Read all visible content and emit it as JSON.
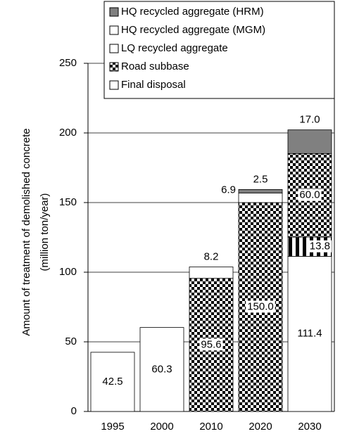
{
  "chart_data": {
    "type": "stacked_bar",
    "ylabel": [
      "Amount of treatment of demolished concrete",
      "(million ton/year)"
    ],
    "categories": [
      "1995",
      "2000",
      "2010",
      "2020",
      "2030"
    ],
    "ylim": [
      0,
      250
    ],
    "yticks": [
      0,
      50,
      100,
      150,
      200,
      250
    ],
    "grid": true,
    "series": [
      {
        "name": "HQ recycled aggregate (MGM)",
        "color": "#ffffff",
        "pattern": "none",
        "values": [
          null,
          null,
          null,
          null,
          111.4
        ],
        "value_labels": [
          null,
          null,
          null,
          null,
          "111.4"
        ]
      },
      {
        "name": "LQ recycled aggregate",
        "color": "#ffffff",
        "pattern": "stripes",
        "values": [
          null,
          null,
          null,
          null,
          13.8
        ],
        "value_labels": [
          null,
          null,
          null,
          null,
          "13.8"
        ]
      },
      {
        "name": "Road subbase",
        "color": "#ffffff",
        "pattern": "checker",
        "values": [
          null,
          null,
          95.6,
          150.0,
          60.0
        ],
        "value_labels": [
          null,
          null,
          "95.6",
          "150.0",
          "60.0"
        ]
      },
      {
        "name": "Final disposal",
        "color": "#ffffff",
        "pattern": "none",
        "values": [
          42.5,
          60.3,
          8.2,
          6.9,
          null
        ],
        "value_labels": [
          "42.5",
          "60.3",
          "8.2",
          "6.9",
          null
        ]
      },
      {
        "name": "HQ recycled aggregate (HRM)",
        "color": "#808080",
        "pattern": "none",
        "values": [
          null,
          null,
          null,
          2.5,
          17.0
        ],
        "value_labels": [
          null,
          null,
          null,
          "2.5",
          "17.0"
        ]
      }
    ],
    "legend_order": [
      4,
      0,
      1,
      2,
      3
    ]
  }
}
